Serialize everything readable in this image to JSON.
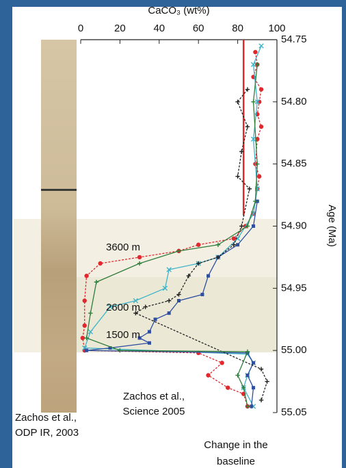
{
  "chart_data": {
    "type": "scatter",
    "title": "CaCO₃ (wt%)",
    "y_label": "Age (Ma)",
    "xlim": [
      0,
      100
    ],
    "xticks": [
      0,
      20,
      40,
      60,
      80,
      100
    ],
    "ylim": [
      54.75,
      55.05
    ],
    "yticks": [
      54.75,
      {
        "value": 54.8,
        "label": "54.80"
      },
      54.85,
      {
        "value": 54.9,
        "label": "54.90"
      },
      54.95,
      {
        "value": 55.0,
        "label": "55.00"
      },
      55.05
    ],
    "baseline": {
      "x": 83,
      "color": "#e0282e"
    },
    "annotations": [
      [
        "Zachos et al.,",
        "Science 2005"
      ],
      [
        "Zachos et al.,",
        "ODP IR, 2003"
      ],
      [
        "Change in the",
        "baseline"
      ]
    ],
    "series": [
      {
        "name": "3600 m",
        "color": "#e0282e",
        "marker": "circle",
        "dashed": true,
        "x": [
          89,
          90,
          88,
          92,
          91,
          90,
          92,
          90,
          89,
          91,
          90,
          88,
          84,
          78,
          60,
          50,
          30,
          10,
          3,
          2,
          2,
          1,
          2,
          60,
          72,
          65,
          75,
          83,
          85
        ],
        "values": [
          54.76,
          54.77,
          54.78,
          54.79,
          54.8,
          54.81,
          54.82,
          54.83,
          54.85,
          54.86,
          54.87,
          54.89,
          54.9,
          54.91,
          54.915,
          54.92,
          54.925,
          54.93,
          54.94,
          54.96,
          54.98,
          54.99,
          55.0,
          55.002,
          55.01,
          55.02,
          55.03,
          55.035,
          55.045
        ]
      },
      {
        "name": "2600 m",
        "color": "#3fb3c8",
        "marker": "x",
        "dashed": false,
        "x": [
          92,
          88,
          90,
          88,
          90,
          88,
          80,
          70,
          60,
          45,
          43,
          28,
          15,
          5,
          2,
          85,
          88,
          85,
          83,
          88
        ],
        "values": [
          54.755,
          54.77,
          54.8,
          54.83,
          54.87,
          54.89,
          54.91,
          54.925,
          54.93,
          54.935,
          54.95,
          54.96,
          54.965,
          54.985,
          54.998,
          55.003,
          55.01,
          55.02,
          55.03,
          55.045
        ]
      },
      {
        "name": "1500 m",
        "color": "#2e4fa0",
        "marker": "square",
        "dashed": false,
        "x": [
          90,
          88,
          80,
          70,
          65,
          62,
          50,
          45,
          38,
          35,
          30,
          35,
          15,
          3,
          85,
          88,
          85,
          88,
          87
        ],
        "values": [
          54.88,
          54.9,
          54.915,
          54.925,
          54.94,
          54.955,
          54.96,
          54.97,
          54.975,
          54.985,
          54.99,
          54.994,
          54.998,
          55.0,
          55.002,
          55.01,
          55.02,
          55.03,
          55.045
        ]
      },
      {
        "color": "#222222",
        "marker": "plus",
        "dashed": true,
        "x": [
          85,
          80,
          85,
          82,
          80,
          86,
          82,
          78,
          70,
          60,
          55,
          50,
          45,
          33,
          28,
          92,
          95,
          92
        ],
        "values": [
          54.79,
          54.8,
          54.82,
          54.84,
          54.86,
          54.87,
          54.9,
          54.915,
          54.925,
          54.93,
          54.94,
          54.955,
          54.96,
          54.965,
          54.97,
          55.015,
          55.025,
          55.04
        ]
      },
      {
        "color": "#2f7d3a",
        "marker": "plus",
        "dashed": false,
        "x": [
          90,
          88,
          90,
          89,
          85,
          70,
          50,
          30,
          8,
          5,
          3,
          20,
          85,
          80,
          83,
          85
        ],
        "values": [
          54.77,
          54.8,
          54.85,
          54.88,
          54.9,
          54.915,
          54.92,
          54.93,
          54.945,
          54.97,
          54.99,
          55.0,
          55.001,
          55.02,
          55.03,
          55.045
        ]
      }
    ]
  }
}
